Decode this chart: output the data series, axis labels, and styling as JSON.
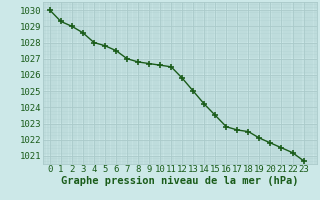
{
  "x": [
    0,
    1,
    2,
    3,
    4,
    5,
    6,
    7,
    8,
    9,
    10,
    11,
    12,
    13,
    14,
    15,
    16,
    17,
    18,
    19,
    20,
    21,
    22,
    23
  ],
  "y": [
    1030.0,
    1029.3,
    1029.0,
    1028.6,
    1028.0,
    1027.8,
    1027.5,
    1027.0,
    1026.8,
    1026.7,
    1026.6,
    1026.5,
    1025.8,
    1025.0,
    1024.2,
    1023.5,
    1022.8,
    1022.6,
    1022.5,
    1022.1,
    1021.8,
    1021.5,
    1021.2,
    1020.7
  ],
  "line_color": "#1a5c1a",
  "marker": "+",
  "marker_size": 4,
  "marker_linewidth": 1.2,
  "background_color": "#cce8e8",
  "grid_color": "#aacaca",
  "xlabel": "Graphe pression niveau de la mer (hPa)",
  "ylim_min": 1020.5,
  "ylim_max": 1030.5,
  "xlim_min": -0.5,
  "xlim_max": 23.5,
  "ytick_labels": [
    "1021",
    "1022",
    "1023",
    "1024",
    "1025",
    "1026",
    "1027",
    "1028",
    "1029",
    "1030"
  ],
  "ytick_values": [
    1021,
    1022,
    1023,
    1024,
    1025,
    1026,
    1027,
    1028,
    1029,
    1030
  ],
  "xtick_values": [
    0,
    1,
    2,
    3,
    4,
    5,
    6,
    7,
    8,
    9,
    10,
    11,
    12,
    13,
    14,
    15,
    16,
    17,
    18,
    19,
    20,
    21,
    22,
    23
  ],
  "xtick_labels": [
    "0",
    "1",
    "2",
    "3",
    "4",
    "5",
    "6",
    "7",
    "8",
    "9",
    "10",
    "11",
    "12",
    "13",
    "14",
    "15",
    "16",
    "17",
    "18",
    "19",
    "20",
    "21",
    "22",
    "23"
  ],
  "tick_label_color": "#1a5c1a",
  "axis_label_color": "#1a5c1a",
  "xlabel_fontsize": 7.5,
  "tick_fontsize": 6.5,
  "line_width": 1.0
}
